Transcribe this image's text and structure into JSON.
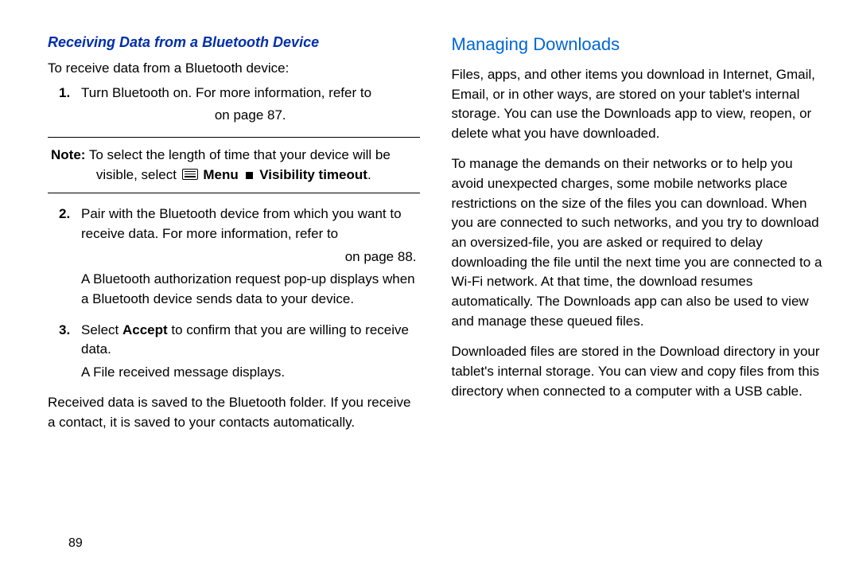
{
  "colors": {
    "heading_left": "#002fa7",
    "heading_right": "#0066d6",
    "text": "#000000",
    "background": "#ffffff",
    "rule": "#000000"
  },
  "typography": {
    "body_fontsize_pt": 13,
    "heading_left_fontsize_pt": 14,
    "heading_right_fontsize_pt": 17,
    "font_family": "Arial"
  },
  "page_number": "89",
  "left": {
    "heading": "Receiving Data from a Bluetooth Device",
    "intro": "To receive data from a Bluetooth device:",
    "step1": "Turn Bluetooth on. For more information, refer to",
    "step1_pageref": "on page 87.",
    "note_label": "Note:",
    "note_line1": " To select the length of time that your device will be",
    "note_visible_select": "visible, select ",
    "note_menu": " Menu ",
    "note_visibility": " Visibility timeout",
    "note_period": ".",
    "step2_a": "Pair with the Bluetooth device from which you want to receive data. For more information, refer to",
    "step2_pageref": "on page 88.",
    "step2_b": "A Bluetooth authorization request pop-up displays when a Bluetooth device sends data to your device.",
    "step3_pre": "Select ",
    "step3_accept": "Accept",
    "step3_post": " to confirm that you are willing to receive data.",
    "step3_b": "A File received message displays.",
    "closing": "Received data is saved to the Bluetooth folder. If you receive a contact, it is saved to your contacts automatically."
  },
  "right": {
    "heading": "Managing Downloads",
    "p1": "Files, apps, and other items you download in Internet, Gmail, Email, or in other ways, are stored on your tablet's internal storage. You can use the Downloads app to view, reopen, or delete what you have downloaded.",
    "p2": "To manage the demands on their networks or to help you avoid unexpected charges, some mobile networks place restrictions on the size of the files you can download. When you are connected to such networks, and you try to download an oversized-file, you are asked or required to delay downloading the file until the next time you are connected to a Wi-Fi network. At that time, the download resumes automatically. The Downloads app can also be used to view and manage these queued files.",
    "p3": "Downloaded files are stored in the Download directory in your tablet's internal storage. You can view and copy files from this directory when connected to a computer with a USB cable."
  }
}
